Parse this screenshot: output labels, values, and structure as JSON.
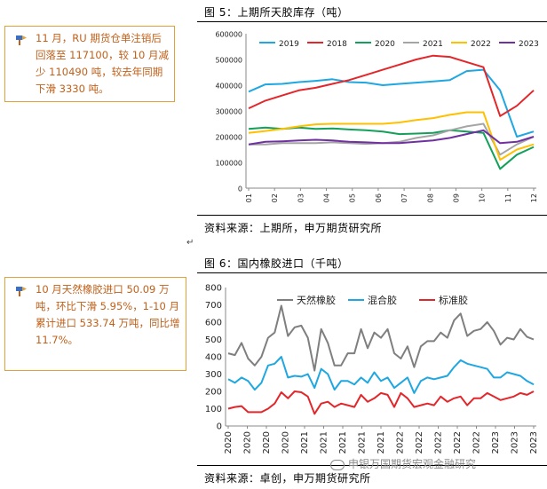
{
  "side_notes": [
    {
      "text": "11 月，RU 期货仓单注销后回落至 117100，较 10 月减少 110490 吨，较去年同期下滑 3330 吨。"
    },
    {
      "text": "10 月天然橡胶进口 50.09 万吨，环比下滑 5.95%，1-10 月累计进口 533.74 万吨，同比增 11.7%。"
    }
  ],
  "colors": {
    "note_text": "#c0601a",
    "note_border": "#e2a23a"
  },
  "figures": [
    {
      "title": "图 5：上期所天胶库存（吨）",
      "source": "资料来源：上期所，申万期货研究所"
    },
    {
      "title": "图 6：国内橡胶进口（千吨）",
      "source": "资料来源：卓创，申万期货研究所"
    }
  ],
  "watermark": "申银万国期货宏观金融研究",
  "chart_data": [
    {
      "type": "line",
      "title": "",
      "x_ticks": [
        "01",
        "02",
        "03",
        "04",
        "05",
        "06",
        "07",
        "08",
        "09",
        "10",
        "11",
        "12"
      ],
      "ylim": [
        0,
        600000
      ],
      "y_ticks": [
        0,
        100000,
        200000,
        300000,
        400000,
        500000,
        600000
      ],
      "legend_position": "top",
      "series": [
        {
          "name": "2019",
          "color": "#1ea7e1",
          "values": [
            375000,
            403000,
            405000,
            412000,
            417000,
            423000,
            412000,
            410000,
            400000,
            405000,
            410000,
            415000,
            420000,
            455000,
            460000,
            380000,
            200000,
            220000
          ]
        },
        {
          "name": "2018",
          "color": "#e3262a",
          "values": [
            310000,
            340000,
            360000,
            380000,
            390000,
            405000,
            420000,
            440000,
            460000,
            480000,
            500000,
            515000,
            510000,
            490000,
            470000,
            280000,
            320000,
            380000
          ]
        },
        {
          "name": "2020",
          "color": "#13a05a",
          "values": [
            230000,
            235000,
            230000,
            235000,
            230000,
            232000,
            228000,
            225000,
            220000,
            210000,
            212000,
            215000,
            225000,
            220000,
            215000,
            75000,
            130000,
            160000
          ]
        },
        {
          "name": "2021",
          "color": "#a5a5a5",
          "values": [
            170000,
            170000,
            175000,
            175000,
            175000,
            178000,
            175000,
            172000,
            175000,
            180000,
            195000,
            205000,
            225000,
            240000,
            250000,
            130000,
            170000,
            200000
          ]
        },
        {
          "name": "2022",
          "color": "#ffc000",
          "values": [
            215000,
            222000,
            230000,
            240000,
            248000,
            250000,
            250000,
            250000,
            250000,
            255000,
            265000,
            272000,
            285000,
            295000,
            295000,
            110000,
            150000,
            170000
          ]
        },
        {
          "name": "2023",
          "color": "#7030a0",
          "values": [
            170000,
            180000,
            182000,
            185000,
            188000,
            185000,
            180000,
            178000,
            175000,
            175000,
            180000,
            185000,
            195000,
            210000,
            225000,
            175000,
            180000,
            200000
          ]
        }
      ]
    },
    {
      "type": "line",
      "title": "",
      "x_ticks": [
        "2020",
        "2020",
        "2020",
        "2020",
        "2021",
        "2021",
        "2021",
        "2021",
        "2021",
        "2022",
        "2022",
        "2022",
        "2022",
        "2022",
        "2023",
        "2023",
        "2023"
      ],
      "ylim": [
        0,
        800
      ],
      "y_ticks": [
        0,
        100,
        200,
        300,
        400,
        500,
        600,
        700,
        800
      ],
      "legend_position": "top-left",
      "series": [
        {
          "name": "天然橡胶",
          "color": "#7f7f7f",
          "values": [
            420,
            410,
            480,
            390,
            350,
            400,
            510,
            540,
            695,
            520,
            570,
            580,
            510,
            320,
            560,
            480,
            350,
            350,
            420,
            420,
            560,
            450,
            540,
            510,
            560,
            420,
            390,
            460,
            340,
            460,
            490,
            490,
            540,
            510,
            610,
            650,
            520,
            550,
            560,
            600,
            550,
            470,
            510,
            500,
            560,
            515,
            500
          ]
        },
        {
          "name": "混合胶",
          "color": "#1ea7e1",
          "values": [
            270,
            250,
            280,
            260,
            210,
            250,
            350,
            360,
            400,
            280,
            290,
            285,
            300,
            220,
            330,
            300,
            210,
            260,
            260,
            240,
            280,
            250,
            310,
            260,
            280,
            220,
            250,
            280,
            190,
            260,
            280,
            270,
            280,
            290,
            340,
            380,
            360,
            350,
            340,
            330,
            280,
            280,
            310,
            300,
            290,
            260,
            240
          ]
        },
        {
          "name": "标准胶",
          "color": "#e3262a",
          "values": [
            100,
            110,
            115,
            80,
            80,
            80,
            100,
            130,
            195,
            160,
            200,
            195,
            170,
            70,
            130,
            140,
            110,
            130,
            120,
            110,
            180,
            140,
            160,
            190,
            180,
            110,
            190,
            160,
            110,
            120,
            130,
            120,
            170,
            140,
            160,
            170,
            120,
            160,
            160,
            190,
            170,
            150,
            160,
            170,
            190,
            180,
            200
          ]
        }
      ]
    }
  ]
}
